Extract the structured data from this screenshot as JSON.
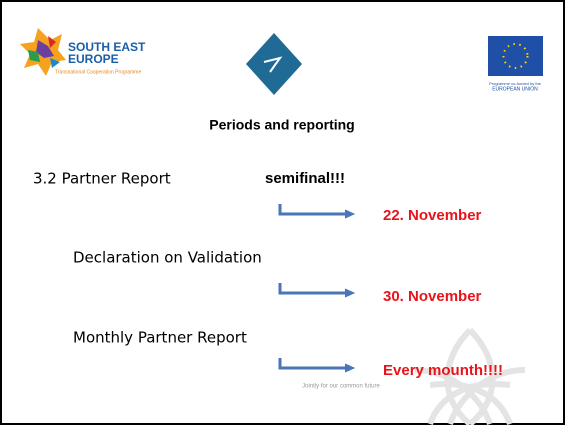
{
  "header": {
    "logo_left": {
      "line1": "SOUTH EAST",
      "line2": "EUROPE",
      "tagline": "Transnational Cooperation Programme"
    },
    "logo_right": {
      "line1": "Programme co-funded by the",
      "line2": "EUROPEAN UNION"
    }
  },
  "title": "Periods and reporting",
  "items": [
    {
      "label": "3.2 Partner Report",
      "note": "semifinal!!!",
      "deadline": "22. November"
    },
    {
      "label": "Declaration on Validation",
      "deadline": "30. November"
    },
    {
      "label": "Monthly Partner Report",
      "deadline": "Every mounth!!!!"
    }
  ],
  "footer": "Jointly for our common future"
}
